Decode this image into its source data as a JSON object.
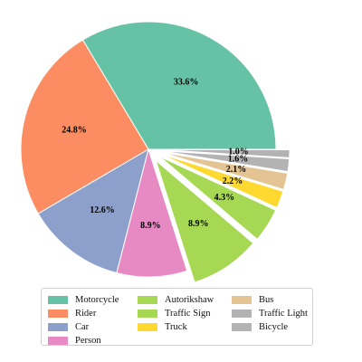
{
  "chart_data": {
    "type": "pie",
    "categories": [
      "Motorcycle",
      "Rider",
      "Car",
      "Person",
      "Autorikshaw",
      "Traffic Sign",
      "Truck",
      "Bus",
      "Traffic Light",
      "Bicycle"
    ],
    "values": [
      33.6,
      24.8,
      12.6,
      8.9,
      8.9,
      4.3,
      2.2,
      2.1,
      1.6,
      1.0
    ],
    "value_labels": [
      "33.6%",
      "24.8%",
      "12.6%",
      "8.9%",
      "8.9%",
      "4.3%",
      "2.2%",
      "2.1%",
      "1.6%",
      "1.0%"
    ],
    "colors": [
      "#66c2a5",
      "#fc8d62",
      "#8da0cb",
      "#e78ac3",
      "#a6d854",
      "#a6d854",
      "#ffd92f",
      "#e5c494",
      "#b3b3b3",
      "#b3b3b3"
    ],
    "exploded": [
      false,
      false,
      false,
      false,
      true,
      true,
      true,
      true,
      true,
      true
    ],
    "start_angle_deg": 0,
    "direction": "counterclockwise",
    "legend": {
      "placement": "bottom",
      "columns": 3
    }
  }
}
